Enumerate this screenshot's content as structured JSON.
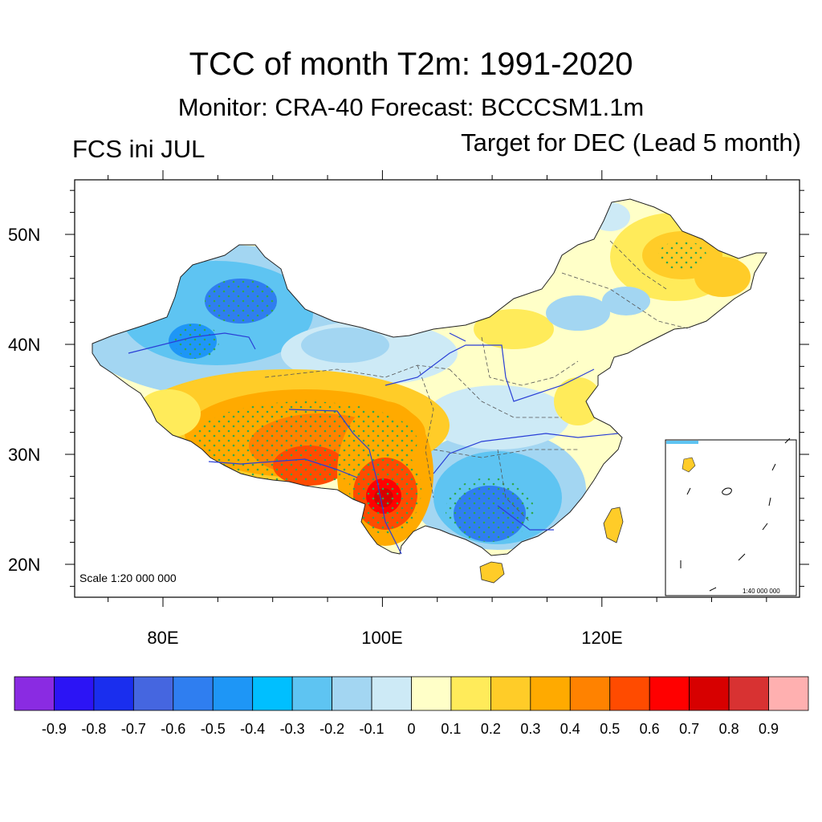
{
  "title": "TCC of month T2m: 1991-2020",
  "subtitle_center": "Monitor: CRA-40   Forecast: BCCCSM1.1m",
  "subtitle_left": "FCS ini JUL",
  "subtitle_right": "Target for DEC (Lead 5 month)",
  "map": {
    "lat_labels": [
      "50N",
      "40N",
      "30N",
      "20N"
    ],
    "lon_labels": [
      "80E",
      "100E",
      "120E"
    ],
    "scale_text": "Scale 1:20 000 000",
    "inset_scale_text": "1:40 000 000",
    "lon_range": [
      72,
      138
    ],
    "lat_range": [
      17,
      55
    ]
  },
  "colorbar": {
    "colors": [
      "#8a2be2",
      "#2c14f5",
      "#1a2eee",
      "#4566e0",
      "#2f7ef0",
      "#1e96f6",
      "#00bfff",
      "#5ec4f2",
      "#a3d6f2",
      "#cdeaf6",
      "#ffffc8",
      "#ffeb5a",
      "#ffcc28",
      "#ffaa00",
      "#ff8200",
      "#ff4b00",
      "#ff0000",
      "#d70000",
      "#d83232",
      "#ffb0b0"
    ],
    "labels": [
      "-0.9",
      "-0.8",
      "-0.7",
      "-0.6",
      "-0.5",
      "-0.4",
      "-0.3",
      "-0.2",
      "-0.1",
      "0",
      "0.1",
      "0.2",
      "0.3",
      "0.4",
      "0.5",
      "0.6",
      "0.7",
      "0.8",
      "0.9"
    ]
  }
}
